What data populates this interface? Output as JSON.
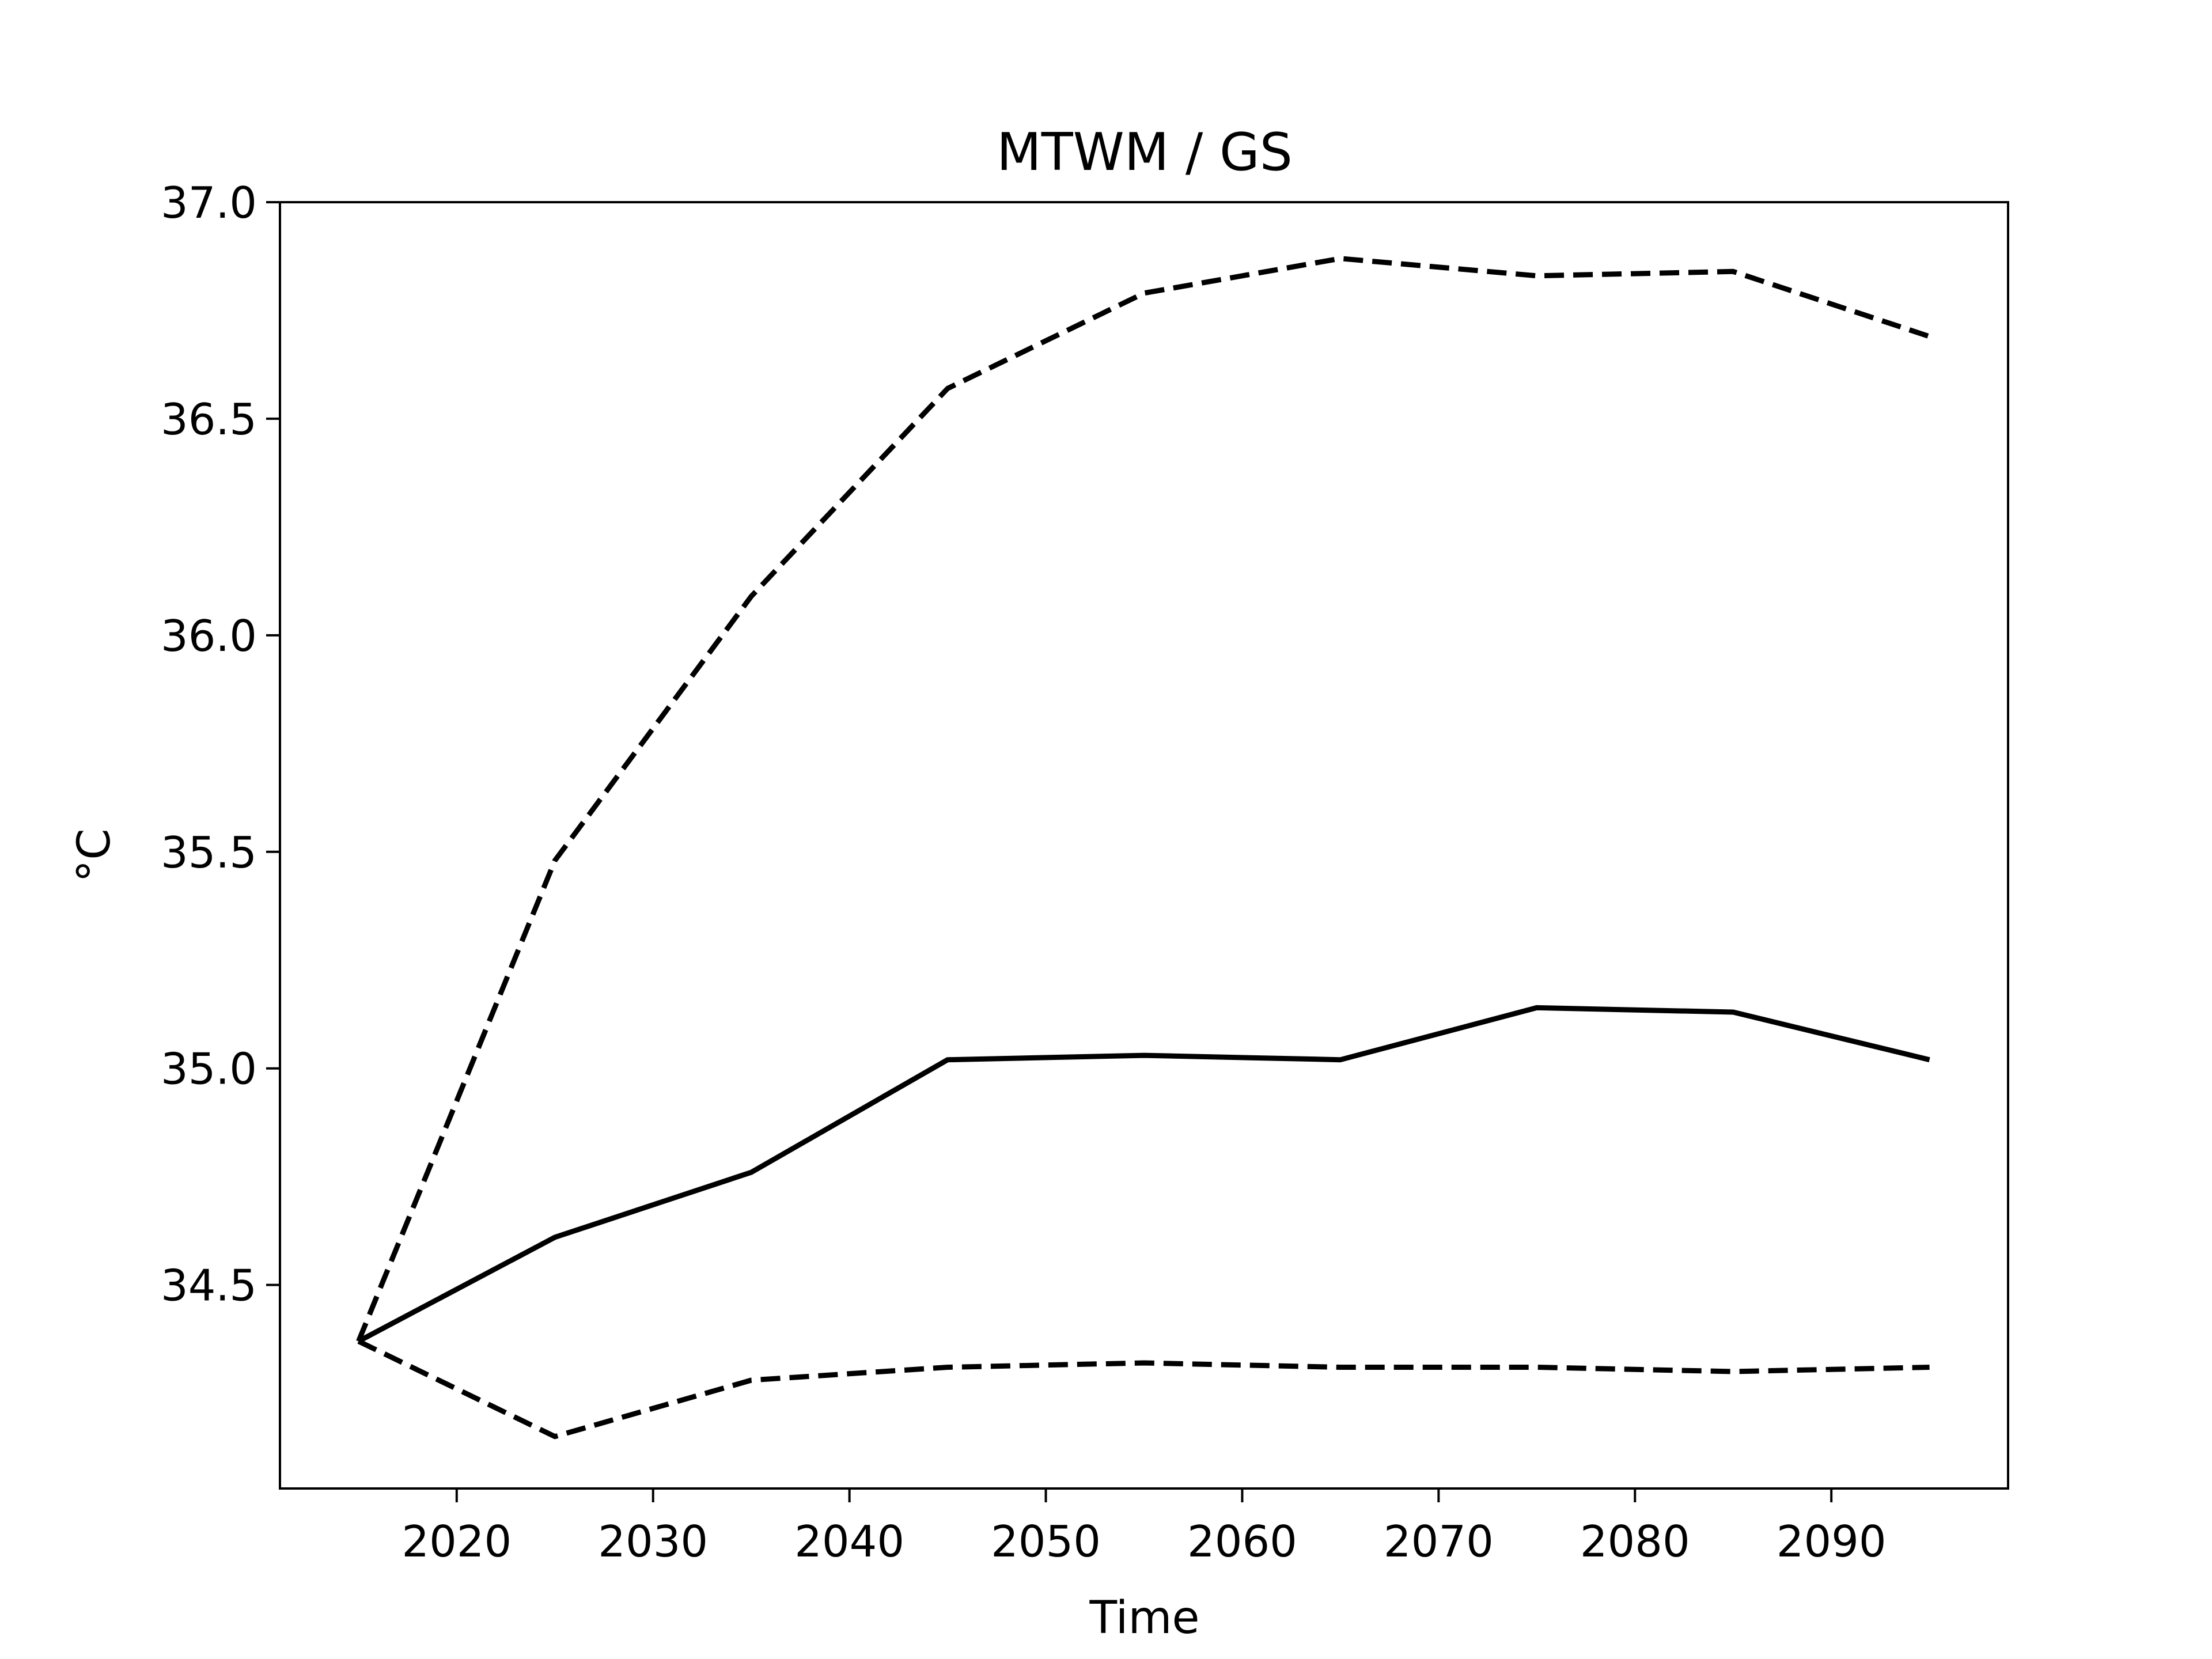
{
  "chart_data": {
    "type": "line",
    "title": "MTWM / GS",
    "xlabel": "Time",
    "ylabel": "°C",
    "xlim": [
      2011,
      2099
    ],
    "ylim": [
      34.03,
      37.0
    ],
    "grid": false,
    "x": [
      2015,
      2025,
      2035,
      2045,
      2055,
      2065,
      2075,
      2085,
      2095
    ],
    "xticks": [
      2020,
      2030,
      2040,
      2050,
      2060,
      2070,
      2080,
      2090
    ],
    "yticks": [
      34.5,
      35.0,
      35.5,
      36.0,
      36.5,
      37.0
    ],
    "ytick_labels": [
      "34.5",
      "35.0",
      "35.5",
      "36.0",
      "36.5",
      "37.0"
    ],
    "series": [
      {
        "style": "solid",
        "color": "#000000",
        "values": [
          34.37,
          34.61,
          34.76,
          35.02,
          35.03,
          35.02,
          35.14,
          35.13,
          35.02
        ]
      },
      {
        "style": "dashed",
        "color": "#000000",
        "values": [
          34.37,
          35.48,
          36.09,
          36.57,
          36.79,
          36.87,
          36.83,
          36.84,
          36.69
        ]
      },
      {
        "style": "dashed",
        "color": "#000000",
        "values": [
          34.37,
          34.15,
          34.28,
          34.31,
          34.32,
          34.31,
          34.31,
          34.3,
          34.31
        ]
      }
    ]
  }
}
